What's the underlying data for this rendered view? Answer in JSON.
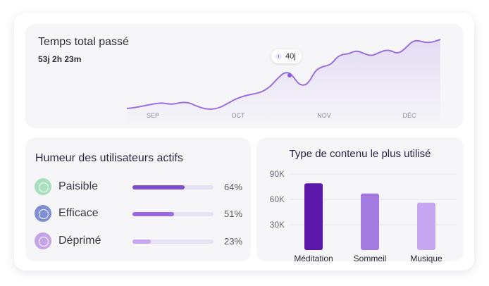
{
  "time_card": {
    "title": "Temps total passé",
    "total": "53j 2h 23m",
    "tooltip": "40j",
    "months": [
      "SEP",
      "OCT",
      "NOV",
      "DÉC"
    ],
    "line_color": "#9b6fe0"
  },
  "mood_card": {
    "title": "Humeur des utilisateurs actifs",
    "items": [
      {
        "label": "Paisible",
        "percent": "64%",
        "fill": 0.64,
        "icon": "smile-icon",
        "icon_color": "#a8e0bf",
        "bar_color": "#7c4fce"
      },
      {
        "label": "Efficace",
        "percent": "51%",
        "fill": 0.51,
        "icon": "focus-icon",
        "icon_color": "#7f8fd6",
        "bar_color": "#9a6ae2"
      },
      {
        "label": "Déprimé",
        "percent": "23%",
        "fill": 0.23,
        "icon": "sad-icon",
        "icon_color": "#c5a4ea",
        "bar_color": "#c9a6f0"
      }
    ]
  },
  "type_card": {
    "title": "Type de contenu le plus utilisé"
  },
  "chart_data": {
    "type": "bar",
    "title": "Type de contenu le plus utilisé",
    "categories": [
      "Méditation",
      "Sommeil",
      "Musique"
    ],
    "values": [
      79000,
      67000,
      56000
    ],
    "y_ticks": [
      "90K",
      "60K",
      "30K"
    ],
    "y_tick_values": [
      90000,
      60000,
      30000
    ],
    "ylim": [
      0,
      100000
    ],
    "bar_colors": [
      "#5a17a8",
      "#a27ae0",
      "#c7a6f2"
    ],
    "grid": true
  }
}
